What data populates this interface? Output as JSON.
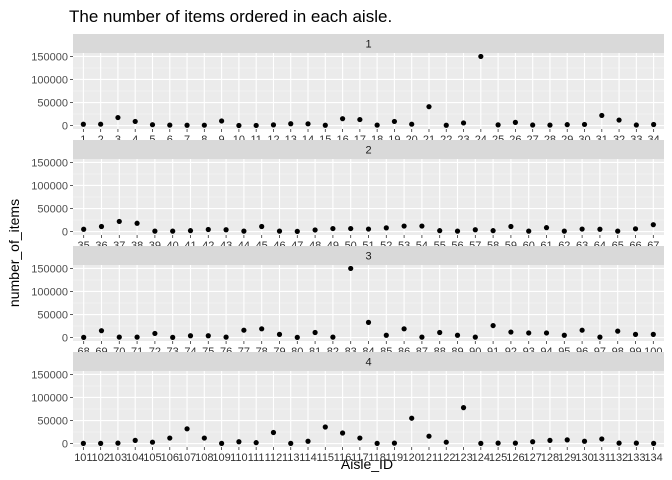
{
  "chart_data": {
    "type": "scatter",
    "title": "The number of items ordered in each aisle.",
    "xlabel": "Aisle_ID",
    "ylabel": "number_of_items",
    "ylim": [
      0,
      150000
    ],
    "yticks": [
      0,
      50000,
      100000,
      150000
    ],
    "yticks_labels": [
      "0",
      "50000",
      "100000",
      "150000"
    ],
    "grid": true,
    "facets": [
      {
        "label": "1",
        "aisles": [
          1,
          2,
          3,
          4,
          5,
          6,
          7,
          8,
          9,
          10,
          11,
          12,
          13,
          14,
          15,
          16,
          17,
          18,
          19,
          20,
          21,
          22,
          23,
          24,
          25,
          26,
          27,
          28,
          29,
          30,
          31,
          32,
          33,
          34
        ],
        "values": [
          2900,
          3000,
          17400,
          9000,
          1900,
          1000,
          700,
          800,
          10000,
          200,
          300,
          1500,
          4000,
          3800,
          700,
          15000,
          13000,
          1000,
          9000,
          3000,
          41000,
          700,
          5700,
          150000,
          1500,
          7000,
          1200,
          1000,
          2000,
          2500,
          22000,
          12000,
          1200,
          2300
        ]
      },
      {
        "label": "2",
        "aisles": [
          35,
          36,
          37,
          38,
          39,
          40,
          41,
          42,
          43,
          44,
          45,
          46,
          47,
          48,
          49,
          50,
          51,
          52,
          53,
          54,
          55,
          56,
          57,
          58,
          59,
          60,
          61,
          62,
          63,
          64,
          65,
          66,
          67
        ],
        "values": [
          5000,
          11000,
          22000,
          18000,
          1000,
          1000,
          2000,
          4500,
          4000,
          1000,
          11000,
          1000,
          500,
          3500,
          6500,
          6500,
          5500,
          8000,
          12000,
          12000,
          2000,
          1000,
          4000,
          2000,
          11000,
          1000,
          8500,
          1000,
          5500,
          5000,
          1000,
          6000,
          15000
        ]
      },
      {
        "label": "3",
        "aisles": [
          68,
          69,
          70,
          71,
          72,
          73,
          74,
          75,
          76,
          77,
          78,
          79,
          80,
          81,
          82,
          83,
          84,
          85,
          86,
          87,
          88,
          89,
          90,
          91,
          92,
          93,
          94,
          95,
          96,
          97,
          98,
          99,
          100
        ],
        "values": [
          500,
          15000,
          1000,
          1000,
          9000,
          500,
          4000,
          4000,
          1000,
          16000,
          19000,
          7000,
          500,
          11000,
          1000,
          150000,
          33000,
          5000,
          19000,
          1000,
          11000,
          5000,
          1000,
          26000,
          12000,
          10000,
          10000,
          5000,
          16000,
          1000,
          14000,
          7000,
          7000
        ]
      },
      {
        "label": "4",
        "aisles": [
          101,
          102,
          103,
          104,
          105,
          106,
          107,
          108,
          109,
          110,
          111,
          112,
          113,
          114,
          115,
          116,
          117,
          118,
          119,
          120,
          121,
          122,
          123,
          124,
          125,
          126,
          127,
          128,
          129,
          130,
          131,
          132,
          133,
          134
        ],
        "values": [
          500,
          500,
          1000,
          7000,
          3000,
          12000,
          32000,
          12000,
          500,
          4000,
          2000,
          24000,
          500,
          5000,
          36000,
          23000,
          12000,
          500,
          1000,
          55000,
          16000,
          3000,
          78000,
          500,
          1000,
          1000,
          4000,
          7000,
          8000,
          5000,
          10000,
          1000,
          1000,
          500
        ]
      }
    ]
  }
}
